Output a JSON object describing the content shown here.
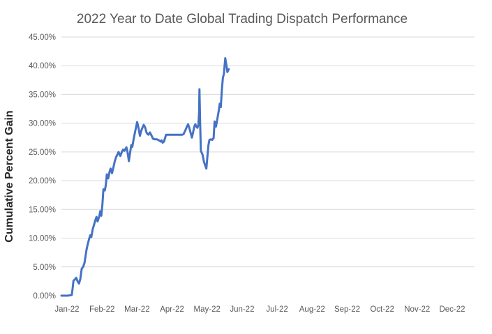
{
  "chart_data": {
    "type": "line",
    "title": "2022 Year to Date Global Trading Dispatch Performance",
    "xlabel": "",
    "ylabel": "Cumulative Percent Gain",
    "x_unit": "fractional months since Jan 1 2022",
    "y_unit": "percent",
    "xlim_months": [
      0,
      12
    ],
    "ylim": [
      0,
      45
    ],
    "y_tick_step": 5,
    "grid": "horizontal only, no gridline at 0%",
    "legend": "none",
    "x_tick_labels": [
      "Jan-22",
      "Feb-22",
      "Mar-22",
      "Apr-22",
      "May-22",
      "Jun-22",
      "Jul-22",
      "Aug-22",
      "Sep-22",
      "Oct-22",
      "Nov-22",
      "Dec-22"
    ],
    "y_tick_labels": [
      "0.00%",
      "5.00%",
      "10.00%",
      "15.00%",
      "20.00%",
      "25.00%",
      "30.00%",
      "35.00%",
      "40.00%",
      "45.00%"
    ],
    "y_tick_values": [
      0,
      5,
      10,
      15,
      20,
      25,
      30,
      35,
      40,
      45
    ],
    "colors": {
      "line": "#4472C4",
      "gridline": "#D9D9D9",
      "title_text": "#595959",
      "tick_text": "#595959",
      "y_axis_title_text": "#262626",
      "background": "#FFFFFF"
    },
    "series": [
      {
        "name": "Cumulative Percent Gain",
        "points": [
          [
            0.0,
            0.0
          ],
          [
            0.18,
            0.0
          ],
          [
            0.3,
            0.1
          ],
          [
            0.32,
            1.0
          ],
          [
            0.35,
            2.6
          ],
          [
            0.39,
            2.8
          ],
          [
            0.43,
            3.1
          ],
          [
            0.47,
            2.5
          ],
          [
            0.51,
            2.1
          ],
          [
            0.55,
            2.9
          ],
          [
            0.59,
            4.7
          ],
          [
            0.63,
            5.0
          ],
          [
            0.67,
            5.7
          ],
          [
            0.73,
            8.0
          ],
          [
            0.77,
            9.1
          ],
          [
            0.81,
            10.0
          ],
          [
            0.84,
            10.5
          ],
          [
            0.87,
            10.2
          ],
          [
            0.91,
            11.6
          ],
          [
            0.95,
            12.4
          ],
          [
            0.99,
            13.2
          ],
          [
            1.02,
            13.7
          ],
          [
            1.05,
            12.9
          ],
          [
            1.1,
            13.8
          ],
          [
            1.13,
            14.7
          ],
          [
            1.16,
            13.9
          ],
          [
            1.19,
            15.8
          ],
          [
            1.22,
            18.5
          ],
          [
            1.26,
            18.3
          ],
          [
            1.29,
            19.2
          ],
          [
            1.32,
            21.1
          ],
          [
            1.36,
            20.4
          ],
          [
            1.4,
            21.6
          ],
          [
            1.43,
            22.1
          ],
          [
            1.47,
            21.3
          ],
          [
            1.51,
            22.3
          ],
          [
            1.55,
            23.4
          ],
          [
            1.59,
            24.1
          ],
          [
            1.63,
            24.6
          ],
          [
            1.66,
            25.0
          ],
          [
            1.71,
            24.3
          ],
          [
            1.75,
            24.9
          ],
          [
            1.79,
            25.4
          ],
          [
            1.83,
            25.2
          ],
          [
            1.89,
            25.8
          ],
          [
            1.92,
            25.0
          ],
          [
            1.96,
            23.4
          ],
          [
            2.0,
            25.1
          ],
          [
            2.03,
            26.2
          ],
          [
            2.06,
            25.9
          ],
          [
            2.1,
            27.3
          ],
          [
            2.14,
            28.5
          ],
          [
            2.2,
            30.2
          ],
          [
            2.24,
            29.2
          ],
          [
            2.28,
            27.8
          ],
          [
            2.32,
            28.7
          ],
          [
            2.36,
            29.3
          ],
          [
            2.39,
            29.7
          ],
          [
            2.43,
            29.3
          ],
          [
            2.47,
            28.4
          ],
          [
            2.5,
            28.1
          ],
          [
            2.53,
            28.0
          ],
          [
            2.57,
            28.4
          ],
          [
            2.62,
            27.8
          ],
          [
            2.66,
            27.3
          ],
          [
            2.72,
            27.2
          ],
          [
            2.78,
            27.2
          ],
          [
            2.84,
            27.0
          ],
          [
            2.88,
            26.8
          ],
          [
            2.91,
            27.0
          ],
          [
            2.94,
            26.6
          ],
          [
            2.98,
            26.8
          ],
          [
            3.01,
            27.4
          ],
          [
            3.04,
            28.0
          ],
          [
            3.12,
            28.0
          ],
          [
            3.22,
            28.0
          ],
          [
            3.32,
            28.0
          ],
          [
            3.43,
            28.0
          ],
          [
            3.51,
            28.0
          ],
          [
            3.55,
            28.1
          ],
          [
            3.58,
            28.5
          ],
          [
            3.61,
            28.9
          ],
          [
            3.65,
            29.5
          ],
          [
            3.68,
            29.8
          ],
          [
            3.71,
            29.3
          ],
          [
            3.75,
            28.4
          ],
          [
            3.79,
            27.5
          ],
          [
            3.82,
            28.3
          ],
          [
            3.86,
            29.4
          ],
          [
            3.89,
            29.8
          ],
          [
            3.92,
            29.4
          ],
          [
            3.95,
            29.2
          ],
          [
            3.98,
            29.7
          ],
          [
            4.0,
            32.0
          ],
          [
            4.01,
            35.9
          ],
          [
            4.03,
            30.0
          ],
          [
            4.05,
            25.2
          ],
          [
            4.1,
            24.5
          ],
          [
            4.14,
            23.3
          ],
          [
            4.18,
            22.6
          ],
          [
            4.21,
            22.1
          ],
          [
            4.24,
            24.2
          ],
          [
            4.27,
            26.2
          ],
          [
            4.3,
            27.1
          ],
          [
            4.34,
            27.2
          ],
          [
            4.38,
            27.1
          ],
          [
            4.42,
            27.4
          ],
          [
            4.45,
            30.3
          ],
          [
            4.49,
            29.4
          ],
          [
            4.53,
            30.8
          ],
          [
            4.57,
            32.2
          ],
          [
            4.6,
            33.4
          ],
          [
            4.63,
            32.8
          ],
          [
            4.66,
            35.8
          ],
          [
            4.69,
            37.9
          ],
          [
            4.72,
            38.6
          ],
          [
            4.74,
            40.0
          ],
          [
            4.76,
            41.3
          ],
          [
            4.79,
            40.2
          ],
          [
            4.82,
            38.9
          ],
          [
            4.86,
            39.4
          ]
        ]
      }
    ]
  }
}
